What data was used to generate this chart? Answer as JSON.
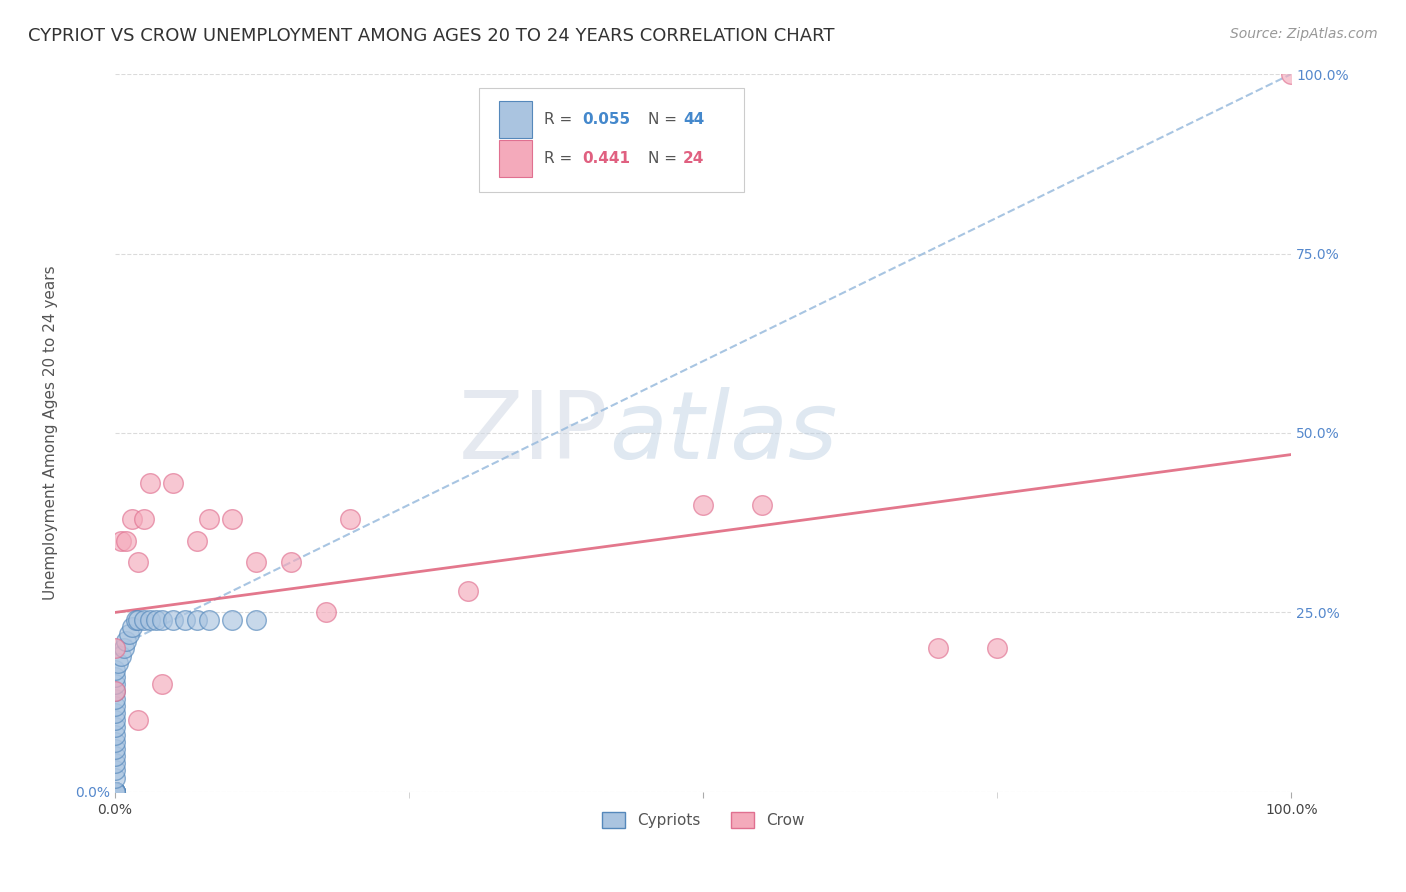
{
  "title": "CYPRIOT VS CROW UNEMPLOYMENT AMONG AGES 20 TO 24 YEARS CORRELATION CHART",
  "source_text": "Source: ZipAtlas.com",
  "ylabel": "Unemployment Among Ages 20 to 24 years",
  "xlim": [
    0,
    1.0
  ],
  "ylim": [
    0,
    1.0
  ],
  "grid_color": "#cccccc",
  "background_color": "#ffffff",
  "watermark_zip": "ZIP",
  "watermark_atlas": "atlas",
  "cypriot_color": "#aac4e0",
  "crow_color": "#f4aabb",
  "cypriot_edge": "#5588bb",
  "crow_edge": "#e07090",
  "cypriot_R": "0.055",
  "cypriot_N": "44",
  "crow_R": "0.441",
  "crow_N": "24",
  "cypriot_trend_color": "#99bbdd",
  "crow_trend_color": "#e06880",
  "title_fontsize": 13,
  "label_fontsize": 11,
  "tick_fontsize": 10,
  "source_fontsize": 10,
  "cypriot_x": [
    0.0,
    0.0,
    0.0,
    0.0,
    0.0,
    0.0,
    0.0,
    0.0,
    0.0,
    0.0,
    0.0,
    0.0,
    0.0,
    0.0,
    0.0,
    0.0,
    0.0,
    0.0,
    0.0,
    0.0,
    0.0,
    0.0,
    0.0,
    0.0,
    0.0,
    0.0,
    0.003,
    0.005,
    0.008,
    0.01,
    0.012,
    0.015,
    0.018,
    0.02,
    0.025,
    0.03,
    0.035,
    0.04,
    0.05,
    0.06,
    0.07,
    0.08,
    0.1,
    0.12
  ],
  "cypriot_y": [
    0.0,
    0.0,
    0.0,
    0.0,
    0.0,
    0.0,
    0.0,
    0.0,
    0.0,
    0.0,
    0.02,
    0.03,
    0.04,
    0.05,
    0.06,
    0.07,
    0.08,
    0.09,
    0.1,
    0.11,
    0.12,
    0.13,
    0.14,
    0.15,
    0.16,
    0.17,
    0.18,
    0.19,
    0.2,
    0.21,
    0.22,
    0.23,
    0.24,
    0.24,
    0.24,
    0.24,
    0.24,
    0.24,
    0.24,
    0.24,
    0.24,
    0.24,
    0.24,
    0.24
  ],
  "crow_x": [
    0.0,
    0.0,
    0.005,
    0.01,
    0.015,
    0.02,
    0.025,
    0.03,
    0.05,
    0.07,
    0.08,
    0.1,
    0.12,
    0.15,
    0.18,
    0.2,
    0.5,
    0.55,
    0.7,
    0.75,
    1.0,
    0.02,
    0.04,
    0.3
  ],
  "crow_y": [
    0.14,
    0.2,
    0.35,
    0.35,
    0.38,
    0.32,
    0.38,
    0.43,
    0.43,
    0.35,
    0.38,
    0.38,
    0.32,
    0.32,
    0.25,
    0.38,
    0.4,
    0.4,
    0.2,
    0.2,
    1.0,
    0.1,
    0.15,
    0.28
  ]
}
